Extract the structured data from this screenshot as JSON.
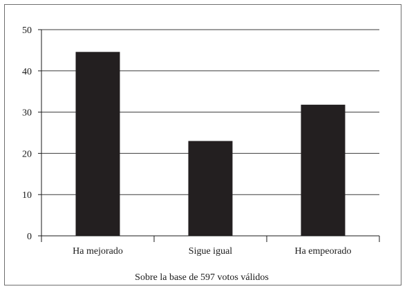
{
  "chart_data": {
    "type": "bar",
    "categories": [
      "Ha mejorado",
      "Sigue igual",
      "Ha empeorado"
    ],
    "values": [
      44.6,
      23.0,
      31.8
    ],
    "ylim": [
      0,
      50
    ],
    "yticks": [
      0,
      10,
      20,
      30,
      40,
      50
    ],
    "grid": true,
    "bar_color": "#231f20",
    "note": "Sobre la base de 597 votos válidos"
  }
}
